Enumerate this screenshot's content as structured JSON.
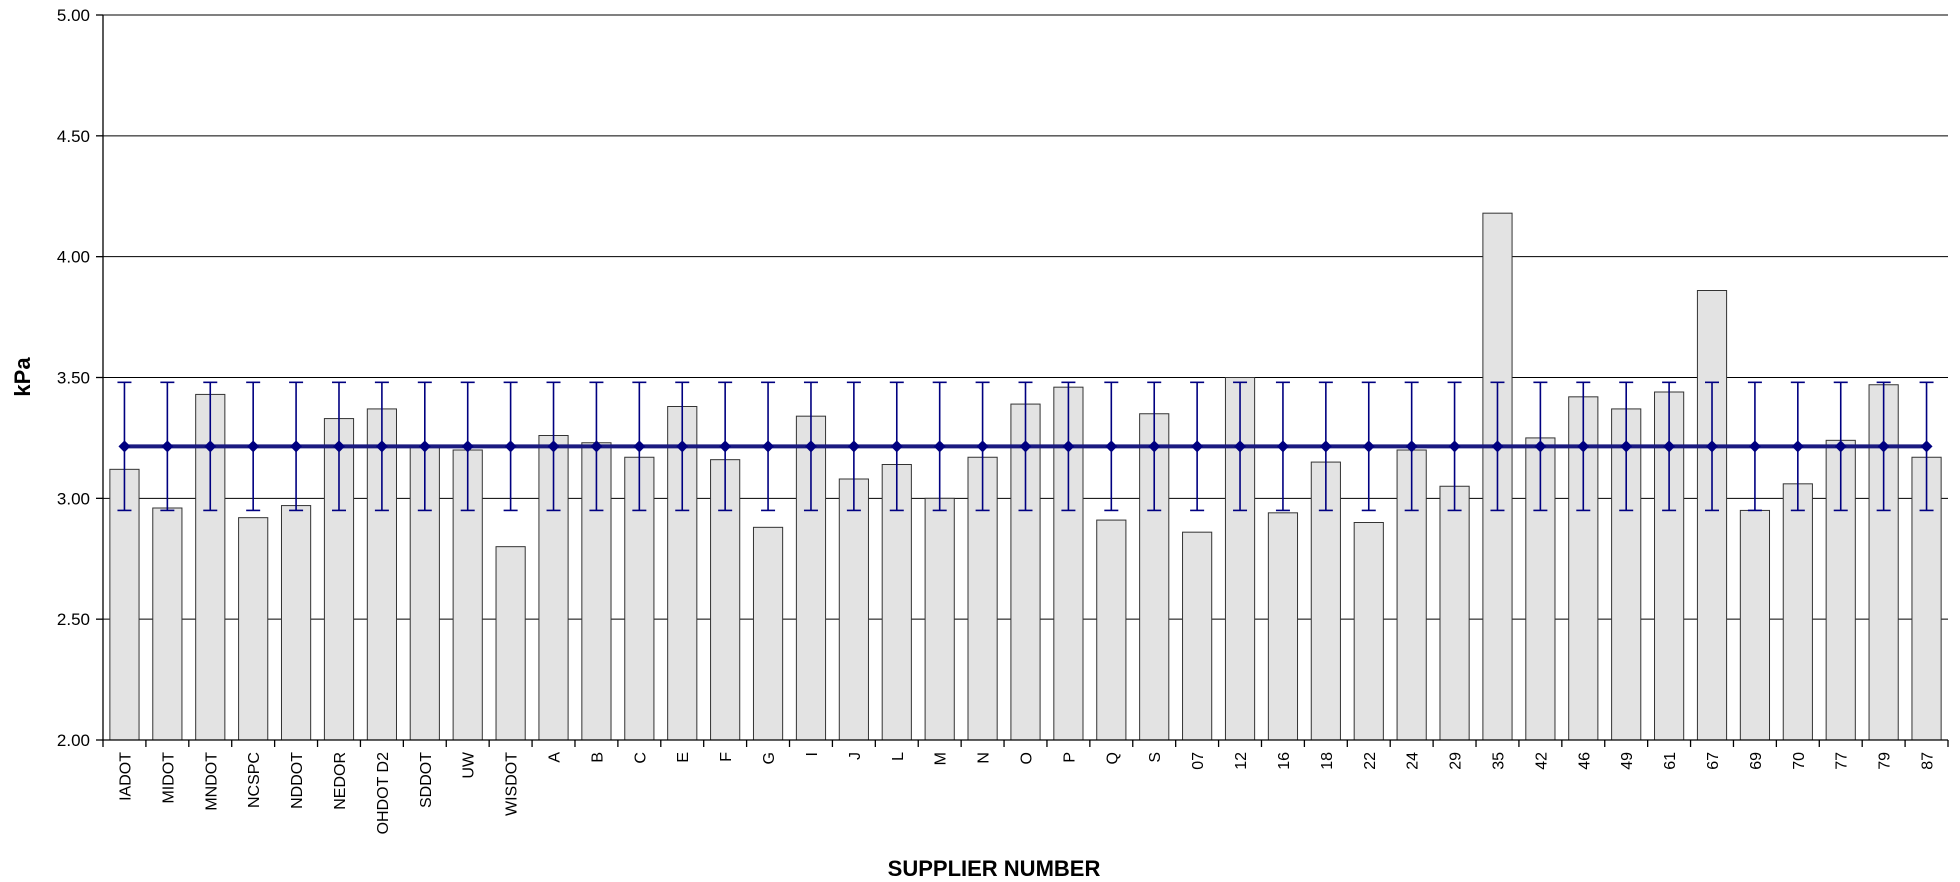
{
  "chart_data": {
    "type": "bar",
    "xlabel": "SUPPLIER NUMBER",
    "ylabel": "kPa",
    "ylim": [
      2.0,
      5.0
    ],
    "yticks": [
      "2.00",
      "2.50",
      "3.00",
      "3.50",
      "4.00",
      "4.50",
      "5.00"
    ],
    "grid": true,
    "categories": [
      "IADOT",
      "MIDOT",
      "MNDOT",
      "NCSPC",
      "NDDOT",
      "NEDOR",
      "OHDOT D2",
      "SDDOT",
      "UW",
      "WISDOT",
      "A",
      "B",
      "C",
      "E",
      "F",
      "G",
      "I",
      "J",
      "L",
      "M",
      "N",
      "O",
      "P",
      "Q",
      "S",
      "07",
      "12",
      "16",
      "18",
      "22",
      "24",
      "29",
      "35",
      "42",
      "46",
      "49",
      "61",
      "67",
      "69",
      "70",
      "77",
      "79",
      "87"
    ],
    "values": [
      3.12,
      2.96,
      3.43,
      2.92,
      2.97,
      3.33,
      3.37,
      3.22,
      3.2,
      2.8,
      3.26,
      3.23,
      3.17,
      3.38,
      3.16,
      2.88,
      3.34,
      3.08,
      3.14,
      3.0,
      3.17,
      3.39,
      3.46,
      2.91,
      3.35,
      2.86,
      3.5,
      2.94,
      3.15,
      2.9,
      3.2,
      3.05,
      4.18,
      3.25,
      3.42,
      3.37,
      3.44,
      3.86,
      2.95,
      3.06,
      3.24,
      3.47,
      3.17
    ],
    "mean_line": {
      "value": 3.215,
      "error_low": 2.95,
      "error_high": 3.48
    },
    "colors": {
      "bar_fill": "#e3e3e3",
      "bar_stroke": "#333333",
      "mean_line": "#1a1a80",
      "marker": "#000080",
      "gridline": "#000000"
    }
  }
}
